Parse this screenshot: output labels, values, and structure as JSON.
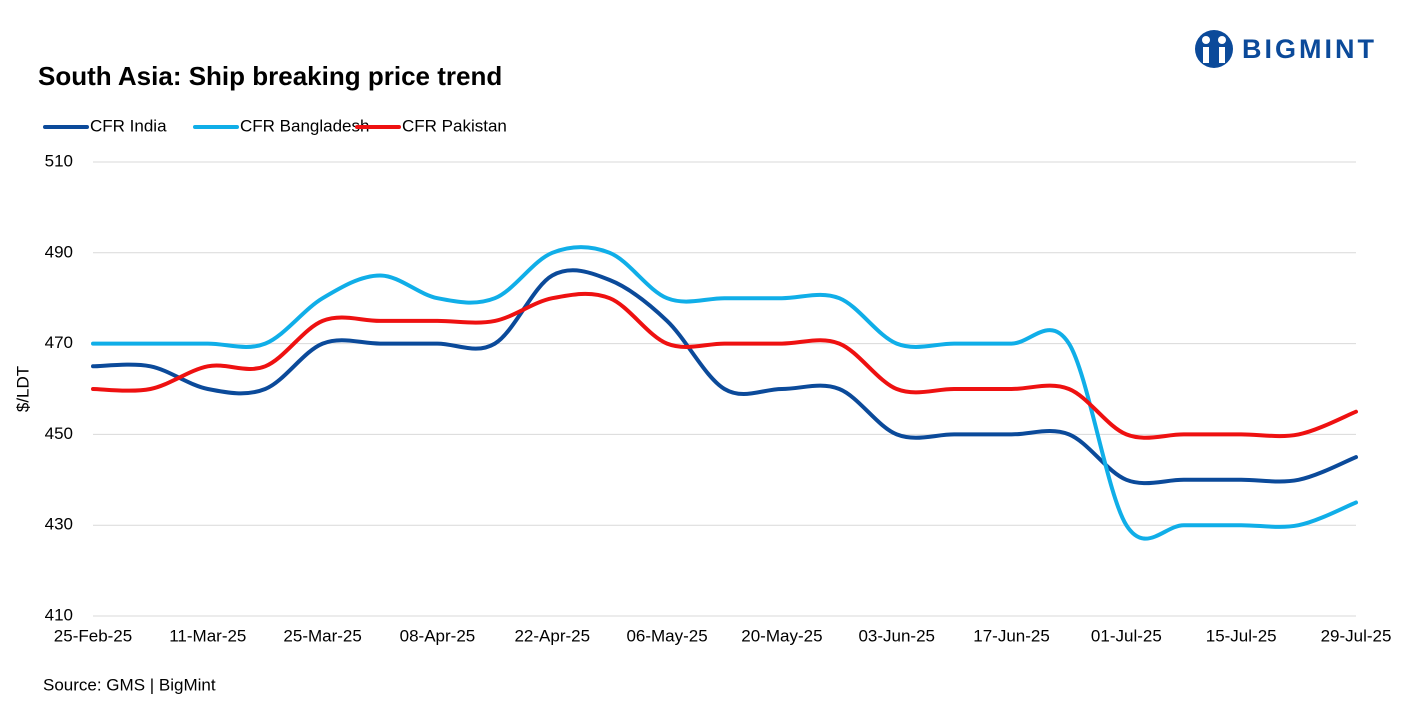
{
  "brand": "BIGMINT",
  "chart_data": {
    "type": "line",
    "title": "South Asia: Ship breaking  price trend",
    "y_label": "$/LDT",
    "source": "Source: GMS | BigMint",
    "categories": [
      "25-Feb-25",
      null,
      "11-Mar-25",
      null,
      "25-Mar-25",
      null,
      "08-Apr-25",
      null,
      "22-Apr-25",
      null,
      "06-May-25",
      null,
      "20-May-25",
      null,
      "03-Jun-25",
      null,
      "17-Jun-25",
      null,
      "01-Jul-25",
      null,
      "15-Jul-25",
      null,
      "29-Jul-25"
    ],
    "series": [
      {
        "name": "CFR India",
        "color": "#0b4a9a",
        "values": [
          465,
          465,
          460,
          460,
          470,
          470,
          470,
          470,
          485,
          484,
          475,
          460,
          460,
          460,
          450,
          450,
          450,
          450,
          440,
          440,
          440,
          440,
          445
        ]
      },
      {
        "name": "CFR Bangladesh",
        "color": "#10aee8",
        "values": [
          470,
          470,
          470,
          470,
          480,
          485,
          480,
          480,
          490,
          490,
          480,
          480,
          480,
          480,
          470,
          470,
          470,
          470,
          430,
          430,
          430,
          430,
          435
        ]
      },
      {
        "name": "CFR Pakistan",
        "color": "#ee1111",
        "values": [
          460,
          460,
          465,
          465,
          475,
          475,
          475,
          475,
          480,
          480,
          470,
          470,
          470,
          470,
          460,
          460,
          460,
          460,
          450,
          450,
          450,
          450,
          455
        ]
      }
    ],
    "ylim": [
      410,
      510
    ],
    "yticks": [
      410,
      430,
      450,
      470,
      490,
      510
    ],
    "grid": true,
    "legend": "top-left"
  }
}
